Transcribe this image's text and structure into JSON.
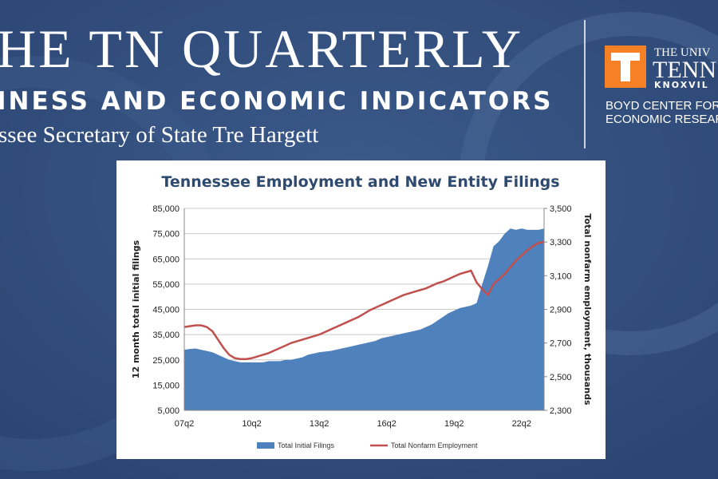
{
  "header": {
    "title": "HE TN QUARTERLY",
    "subtitle": "INESS AND ECONOMIC INDICATORS",
    "byline": "ssee Secretary of State Tre Hargett"
  },
  "logo": {
    "line1": "THE UNIV",
    "line2": "TENN",
    "line3": "KNOXVIL",
    "line4": "BOYD CENTER FOR",
    "line5": "ECONOMIC RESEAR"
  },
  "chart_data": {
    "type": "area-line",
    "title": "Tennessee Employment and New Entity Filings",
    "ylabel": "12 month total initial filings",
    "y2label": "Total nonfarm employment, thousands",
    "categories": [
      "07q2",
      null,
      null,
      null,
      null,
      null,
      null,
      null,
      null,
      null,
      null,
      null,
      "10q2",
      null,
      null,
      null,
      null,
      null,
      null,
      null,
      null,
      null,
      null,
      null,
      "13q2",
      null,
      null,
      null,
      null,
      null,
      null,
      null,
      null,
      null,
      null,
      null,
      "16q2",
      null,
      null,
      null,
      null,
      null,
      null,
      null,
      null,
      null,
      null,
      null,
      "19q2",
      null,
      null,
      null,
      null,
      null,
      null,
      null,
      null,
      null,
      null,
      null,
      "22q2",
      null,
      null,
      null,
      null
    ],
    "series": [
      {
        "name": "Total Initial Filings",
        "color": "#4f81bd",
        "kind": "area",
        "values": [
          29000,
          29300,
          29500,
          29000,
          28500,
          28000,
          27000,
          26000,
          25000,
          24500,
          24000,
          24000,
          24000,
          24000,
          24000,
          24500,
          24500,
          24500,
          25000,
          25000,
          25500,
          26000,
          27000,
          27500,
          28000,
          28300,
          28500,
          29000,
          29500,
          30000,
          30500,
          31000,
          31500,
          32000,
          32500,
          33500,
          34000,
          34500,
          35000,
          35500,
          36000,
          36500,
          37000,
          38000,
          39000,
          40500,
          42000,
          43500,
          44500,
          45500,
          46000,
          46500,
          47500,
          55000,
          62000,
          70000,
          72000,
          75000,
          77000,
          76500,
          77000,
          76500,
          76500,
          76500,
          77000
        ]
      },
      {
        "name": "Total Nonfarm Employment",
        "color": "#c0504d",
        "kind": "line",
        "axis": "y2",
        "values": [
          2795,
          2800,
          2805,
          2805,
          2795,
          2770,
          2720,
          2670,
          2630,
          2610,
          2605,
          2605,
          2610,
          2620,
          2630,
          2640,
          2655,
          2670,
          2685,
          2700,
          2710,
          2720,
          2730,
          2740,
          2750,
          2765,
          2780,
          2795,
          2810,
          2825,
          2840,
          2855,
          2875,
          2895,
          2910,
          2925,
          2940,
          2955,
          2970,
          2985,
          2995,
          3005,
          3015,
          3025,
          3040,
          3055,
          3065,
          3080,
          3095,
          3110,
          3120,
          3130,
          3060,
          3020,
          2985,
          3050,
          3080,
          3110,
          3150,
          3190,
          3220,
          3250,
          3275,
          3295,
          3300
        ]
      }
    ],
    "ylim": [
      5000,
      85000
    ],
    "yticks": [
      {
        "value": 5000,
        "label": "5,000"
      },
      {
        "value": 15000,
        "label": "15,000"
      },
      {
        "value": 25000,
        "label": "25,000"
      },
      {
        "value": 35000,
        "label": "35,000"
      },
      {
        "value": 45000,
        "label": "45,000"
      },
      {
        "value": 55000,
        "label": "55,000"
      },
      {
        "value": 65000,
        "label": "65,000"
      },
      {
        "value": 75000,
        "label": "75,000"
      },
      {
        "value": 85000,
        "label": "85,000"
      }
    ],
    "y2lim": [
      2300,
      3500
    ],
    "y2ticks": [
      {
        "value": 2300,
        "label": "2,300"
      },
      {
        "value": 2500,
        "label": "2,500"
      },
      {
        "value": 2700,
        "label": "2,700"
      },
      {
        "value": 2900,
        "label": "2,900"
      },
      {
        "value": 3100,
        "label": "3,100"
      },
      {
        "value": 3300,
        "label": "3,300"
      },
      {
        "value": 3500,
        "label": "3,500"
      }
    ],
    "grid": true,
    "legend": "bottom"
  }
}
